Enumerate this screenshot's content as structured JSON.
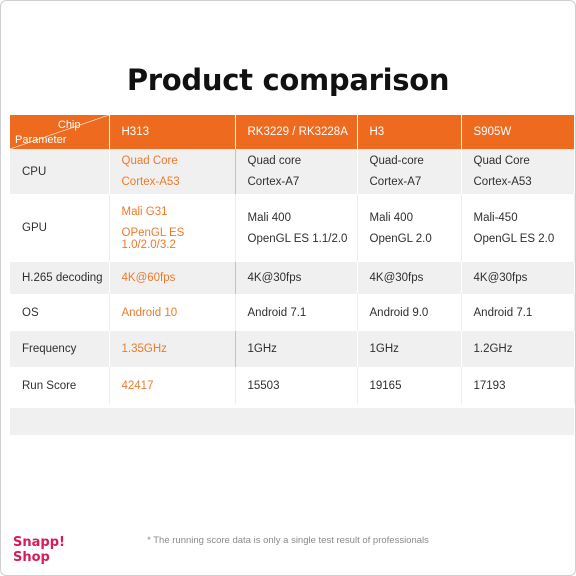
{
  "title": "Product comparison",
  "header": {
    "chip_label": "Chip",
    "parameter_label": "Parameter",
    "chips": [
      "H313",
      "RK3229 / RK3228A",
      "H3",
      "S905W"
    ]
  },
  "rows": [
    {
      "param": "CPU",
      "values": [
        [
          "Quad Core",
          "Cortex-A53"
        ],
        [
          "Quad core",
          "Cortex-A7"
        ],
        [
          "Quad-core",
          "Cortex-A7"
        ],
        [
          "Quad Core",
          "Cortex-A53"
        ]
      ]
    },
    {
      "param": "GPU",
      "values": [
        [
          "Mali G31",
          "OPenGL ES 1.0/2.0/3.2"
        ],
        [
          "Mali 400",
          "OpenGL ES 1.1/2.0"
        ],
        [
          "Mali 400",
          "OpenGL 2.0"
        ],
        [
          "Mali-450",
          "OpenGL ES 2.0"
        ]
      ]
    },
    {
      "param": "H.265 decoding",
      "values": [
        [
          "4K@60fps"
        ],
        [
          "4K@30fps"
        ],
        [
          "4K@30fps"
        ],
        [
          "4K@30fps"
        ]
      ]
    },
    {
      "param": "OS",
      "values": [
        [
          "Android 10"
        ],
        [
          "Android 7.1"
        ],
        [
          "Android 9.0"
        ],
        [
          "Android 7.1"
        ]
      ]
    },
    {
      "param": "Frequency",
      "values": [
        [
          "1.35GHz"
        ],
        [
          "1GHz"
        ],
        [
          "1GHz"
        ],
        [
          "1.2GHz"
        ]
      ]
    },
    {
      "param": "Run Score",
      "values": [
        [
          "42417"
        ],
        [
          "15503"
        ],
        [
          "19165"
        ],
        [
          "17193"
        ]
      ]
    }
  ],
  "footnote": "* The running score data is only a single test result of professionals",
  "logo": {
    "line1": "Snapp!",
    "line2": "Shop"
  },
  "colors": {
    "accent": "#ee6a1f",
    "highlight_text": "#ee7a2a",
    "logo": "#d71b5d",
    "band": "#f0f0f0"
  }
}
